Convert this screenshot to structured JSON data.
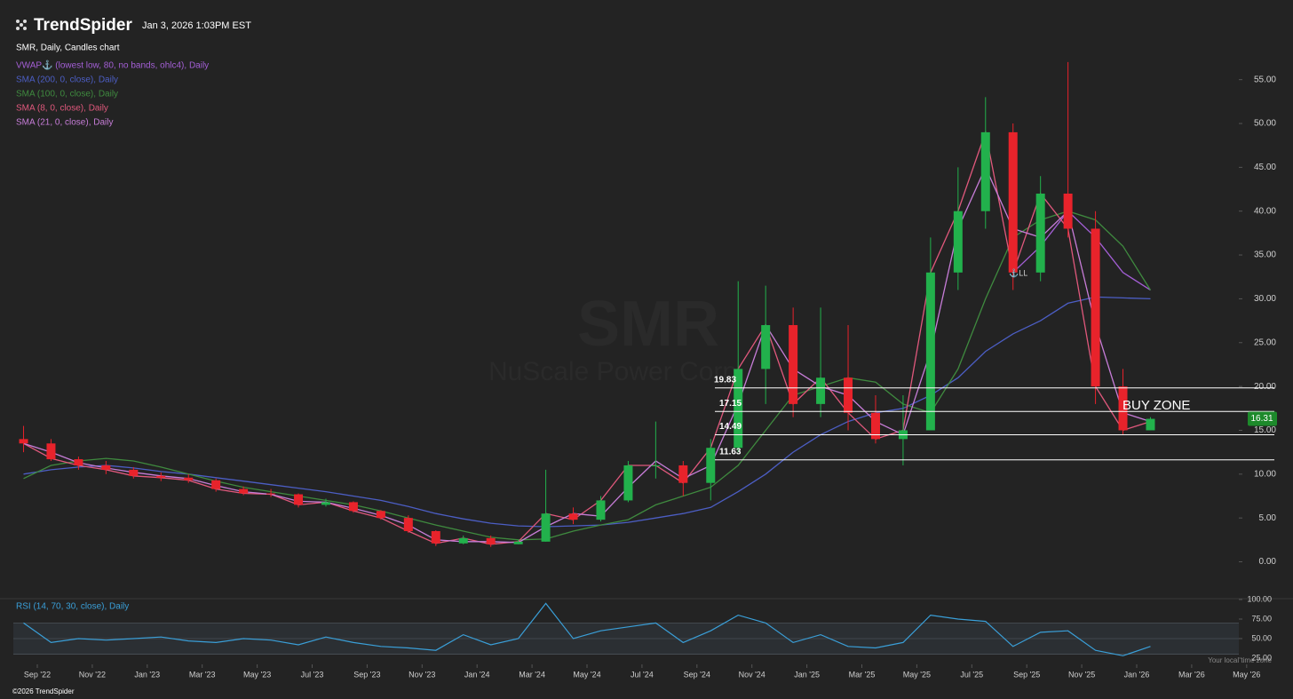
{
  "header": {
    "brand": "TrendSpider",
    "timestamp": "Jan 3, 2026 1:03PM EST",
    "footer": "©2026 TrendSpider",
    "timezone_note": "Your local time zone"
  },
  "chart_data": [
    {
      "type": "candlestick",
      "title": "SMR, Daily, Candles chart",
      "watermark": "SMR",
      "watermark_subtitle": "NuScale Power Corp",
      "categories": [
        null,
        "Sep '22",
        null,
        "Nov '22",
        null,
        "Jan '23",
        null,
        "Mar '23",
        null,
        "May '23",
        null,
        "Jul '23",
        null,
        "Sep '23",
        null,
        "Nov '23",
        null,
        "Jan '24",
        null,
        "Mar '24",
        null,
        "May '24",
        null,
        "Jul '24",
        null,
        "Sep '24",
        null,
        "Nov '24",
        null,
        "Jan '25",
        null,
        "Mar '25",
        null,
        "May '25",
        null,
        "Jul '25",
        null,
        "Sep '25",
        null,
        "Nov '25",
        null,
        "Jan '26",
        null,
        "Mar '26",
        null,
        "May '26"
      ],
      "open": [
        14,
        13.5,
        11.7,
        11,
        10.5,
        9.8,
        9.6,
        9.3,
        8.3,
        7.8,
        7.7,
        6.5,
        6.8,
        5.8,
        5,
        3.5,
        2.1,
        2.7,
        2,
        2.3,
        5.5,
        4.8,
        7,
        11,
        11,
        9,
        13,
        22,
        27,
        18,
        21,
        17,
        14,
        15,
        33,
        40,
        49,
        33,
        42,
        38,
        20,
        15,
        null,
        null,
        null,
        null
      ],
      "high": [
        15.5,
        14,
        12,
        11.5,
        10.8,
        10.2,
        10,
        9.5,
        8.6,
        8.3,
        7.8,
        7.2,
        6.9,
        5.9,
        5.3,
        3.6,
        3,
        3,
        2.5,
        10.5,
        6.2,
        7.5,
        11.5,
        16,
        11.5,
        14,
        32,
        31.5,
        29,
        29,
        27,
        19,
        19,
        37,
        45,
        53,
        50,
        44,
        57,
        40,
        22,
        16.5,
        null,
        null,
        null,
        null
      ],
      "low": [
        12.5,
        11.5,
        10.5,
        10,
        9.5,
        9.2,
        9,
        8,
        7.6,
        7.4,
        6.2,
        6.3,
        5.6,
        4.8,
        3.3,
        1.8,
        2,
        1.7,
        2,
        2.3,
        4.3,
        4.6,
        6.8,
        9.5,
        7.5,
        7,
        12.5,
        18,
        16.5,
        16.5,
        15,
        13.5,
        11,
        15,
        31,
        38,
        31,
        32,
        37,
        18,
        14.5,
        15,
        null,
        null,
        null,
        null
      ],
      "close": [
        13.5,
        11.7,
        11,
        10.5,
        9.8,
        9.6,
        9.3,
        8.3,
        7.8,
        7.7,
        6.5,
        6.8,
        5.8,
        5,
        3.5,
        2.1,
        2.7,
        2,
        2.3,
        5.5,
        4.8,
        7,
        11,
        11,
        9,
        13,
        22,
        27,
        18,
        21,
        17,
        14,
        15,
        33,
        40,
        49,
        33,
        42,
        38,
        20,
        15,
        16.31,
        null,
        null,
        null,
        null
      ],
      "up_color": "#22b14c",
      "down_color": "#e8232b",
      "badge_color": "#1d8a2b",
      "series": [
        {
          "name": "VWAP⚓ (lowest low, 80, no bands, ohlc4), Daily",
          "color": "#a45fd6",
          "values": [
            null,
            null,
            null,
            null,
            null,
            null,
            null,
            null,
            null,
            null,
            null,
            null,
            null,
            null,
            null,
            null,
            null,
            null,
            null,
            null,
            null,
            null,
            null,
            null,
            null,
            null,
            null,
            null,
            null,
            null,
            null,
            null,
            null,
            null,
            null,
            null,
            33,
            36,
            40,
            37,
            33,
            31,
            null,
            null,
            null,
            null
          ]
        },
        {
          "name": "SMA (200, 0, close), Daily",
          "color": "#4c5ec4",
          "values": [
            10,
            10.5,
            10.8,
            11,
            10.7,
            10.3,
            10,
            9.6,
            9.2,
            8.8,
            8.4,
            8,
            7.5,
            7,
            6.3,
            5.5,
            4.9,
            4.4,
            4.1,
            4,
            4.1,
            4.2,
            4.5,
            5,
            5.5,
            6.2,
            8,
            10,
            12.5,
            14.5,
            16,
            17,
            17.5,
            19,
            21,
            24,
            26,
            27.5,
            29.5,
            30.2,
            30.1,
            30,
            null,
            null,
            null,
            null
          ]
        },
        {
          "name": "SMA (100, 0, close), Daily",
          "color": "#3f8a3f",
          "values": [
            9.5,
            11,
            11.5,
            11.8,
            11.5,
            10.8,
            10,
            9.2,
            8.5,
            8,
            7.5,
            7,
            6.5,
            5.8,
            5,
            4.2,
            3.5,
            2.8,
            2.5,
            2.6,
            3.5,
            4.2,
            4.8,
            6.5,
            7.5,
            8.5,
            11,
            15,
            19,
            20,
            21,
            20.5,
            18,
            17,
            22,
            30,
            37,
            39,
            40,
            39,
            36,
            31,
            null,
            null,
            null,
            null
          ]
        },
        {
          "name": "SMA (8, 0, close), Daily",
          "color": "#e0587c",
          "values": [
            13.5,
            11.8,
            11,
            10.5,
            9.8,
            9.6,
            9.3,
            8.3,
            7.8,
            7.7,
            6.5,
            6.8,
            5.8,
            5,
            3.5,
            2.1,
            2.7,
            2,
            2.3,
            5.5,
            4.8,
            7,
            11,
            11,
            9,
            13,
            22,
            27,
            18,
            21,
            17,
            14,
            15,
            33,
            40,
            49,
            33,
            42,
            38,
            20,
            15,
            16,
            null,
            null,
            null,
            null
          ]
        },
        {
          "name": "SMA (21, 0, close), Daily",
          "color": "#c77dd8",
          "values": [
            13.5,
            12.5,
            11.3,
            10.7,
            10.2,
            9.8,
            9.5,
            8.7,
            8,
            7.7,
            6.9,
            6.8,
            6.1,
            5.3,
            4.2,
            2.5,
            2.3,
            2.3,
            2.2,
            4,
            5.5,
            5.2,
            8.5,
            11.5,
            9.5,
            11,
            18,
            27,
            22,
            20,
            19,
            16,
            14.5,
            24,
            38,
            45,
            38,
            37,
            40,
            27,
            17,
            16,
            null,
            null,
            null,
            null
          ]
        }
      ],
      "levels": [
        19.83,
        17.15,
        14.49,
        11.63
      ],
      "annotation": "BUY ZONE",
      "anchor_label": "⚓LL",
      "ylim": [
        -4,
        57.5
      ],
      "yticks": [
        {
          "value": 0,
          "label": "0.00"
        },
        {
          "value": 5,
          "label": "5.00"
        },
        {
          "value": 10,
          "label": "10.00"
        },
        {
          "value": 15,
          "label": "15.00"
        },
        {
          "value": 20,
          "label": "20.00"
        },
        {
          "value": 25,
          "label": "25.00"
        },
        {
          "value": 30,
          "label": "30.00"
        },
        {
          "value": 35,
          "label": "35.00"
        },
        {
          "value": 40,
          "label": "40.00"
        },
        {
          "value": 45,
          "label": "45.00"
        },
        {
          "value": 50,
          "label": "50.00"
        },
        {
          "value": 55,
          "label": "55.00"
        }
      ]
    },
    {
      "type": "line",
      "series": [
        {
          "name": "RSI (14, 70, 30, close), Daily",
          "color": "#3a9fd8",
          "values": [
            70,
            45,
            50,
            48,
            50,
            52,
            47,
            45,
            50,
            48,
            42,
            52,
            45,
            40,
            38,
            35,
            55,
            42,
            50,
            95,
            50,
            60,
            65,
            70,
            45,
            60,
            80,
            70,
            45,
            55,
            40,
            38,
            45,
            80,
            75,
            72,
            40,
            58,
            60,
            35,
            28,
            40,
            null,
            null,
            null,
            null
          ]
        }
      ],
      "bands": [
        30,
        50,
        70
      ],
      "ylim": [
        17,
        100
      ],
      "yticks": [
        {
          "value": 25,
          "label": "25.00"
        },
        {
          "value": 50,
          "label": "50.00"
        },
        {
          "value": 75,
          "label": "75.00"
        },
        {
          "value": 100,
          "label": "100.00"
        }
      ]
    }
  ]
}
